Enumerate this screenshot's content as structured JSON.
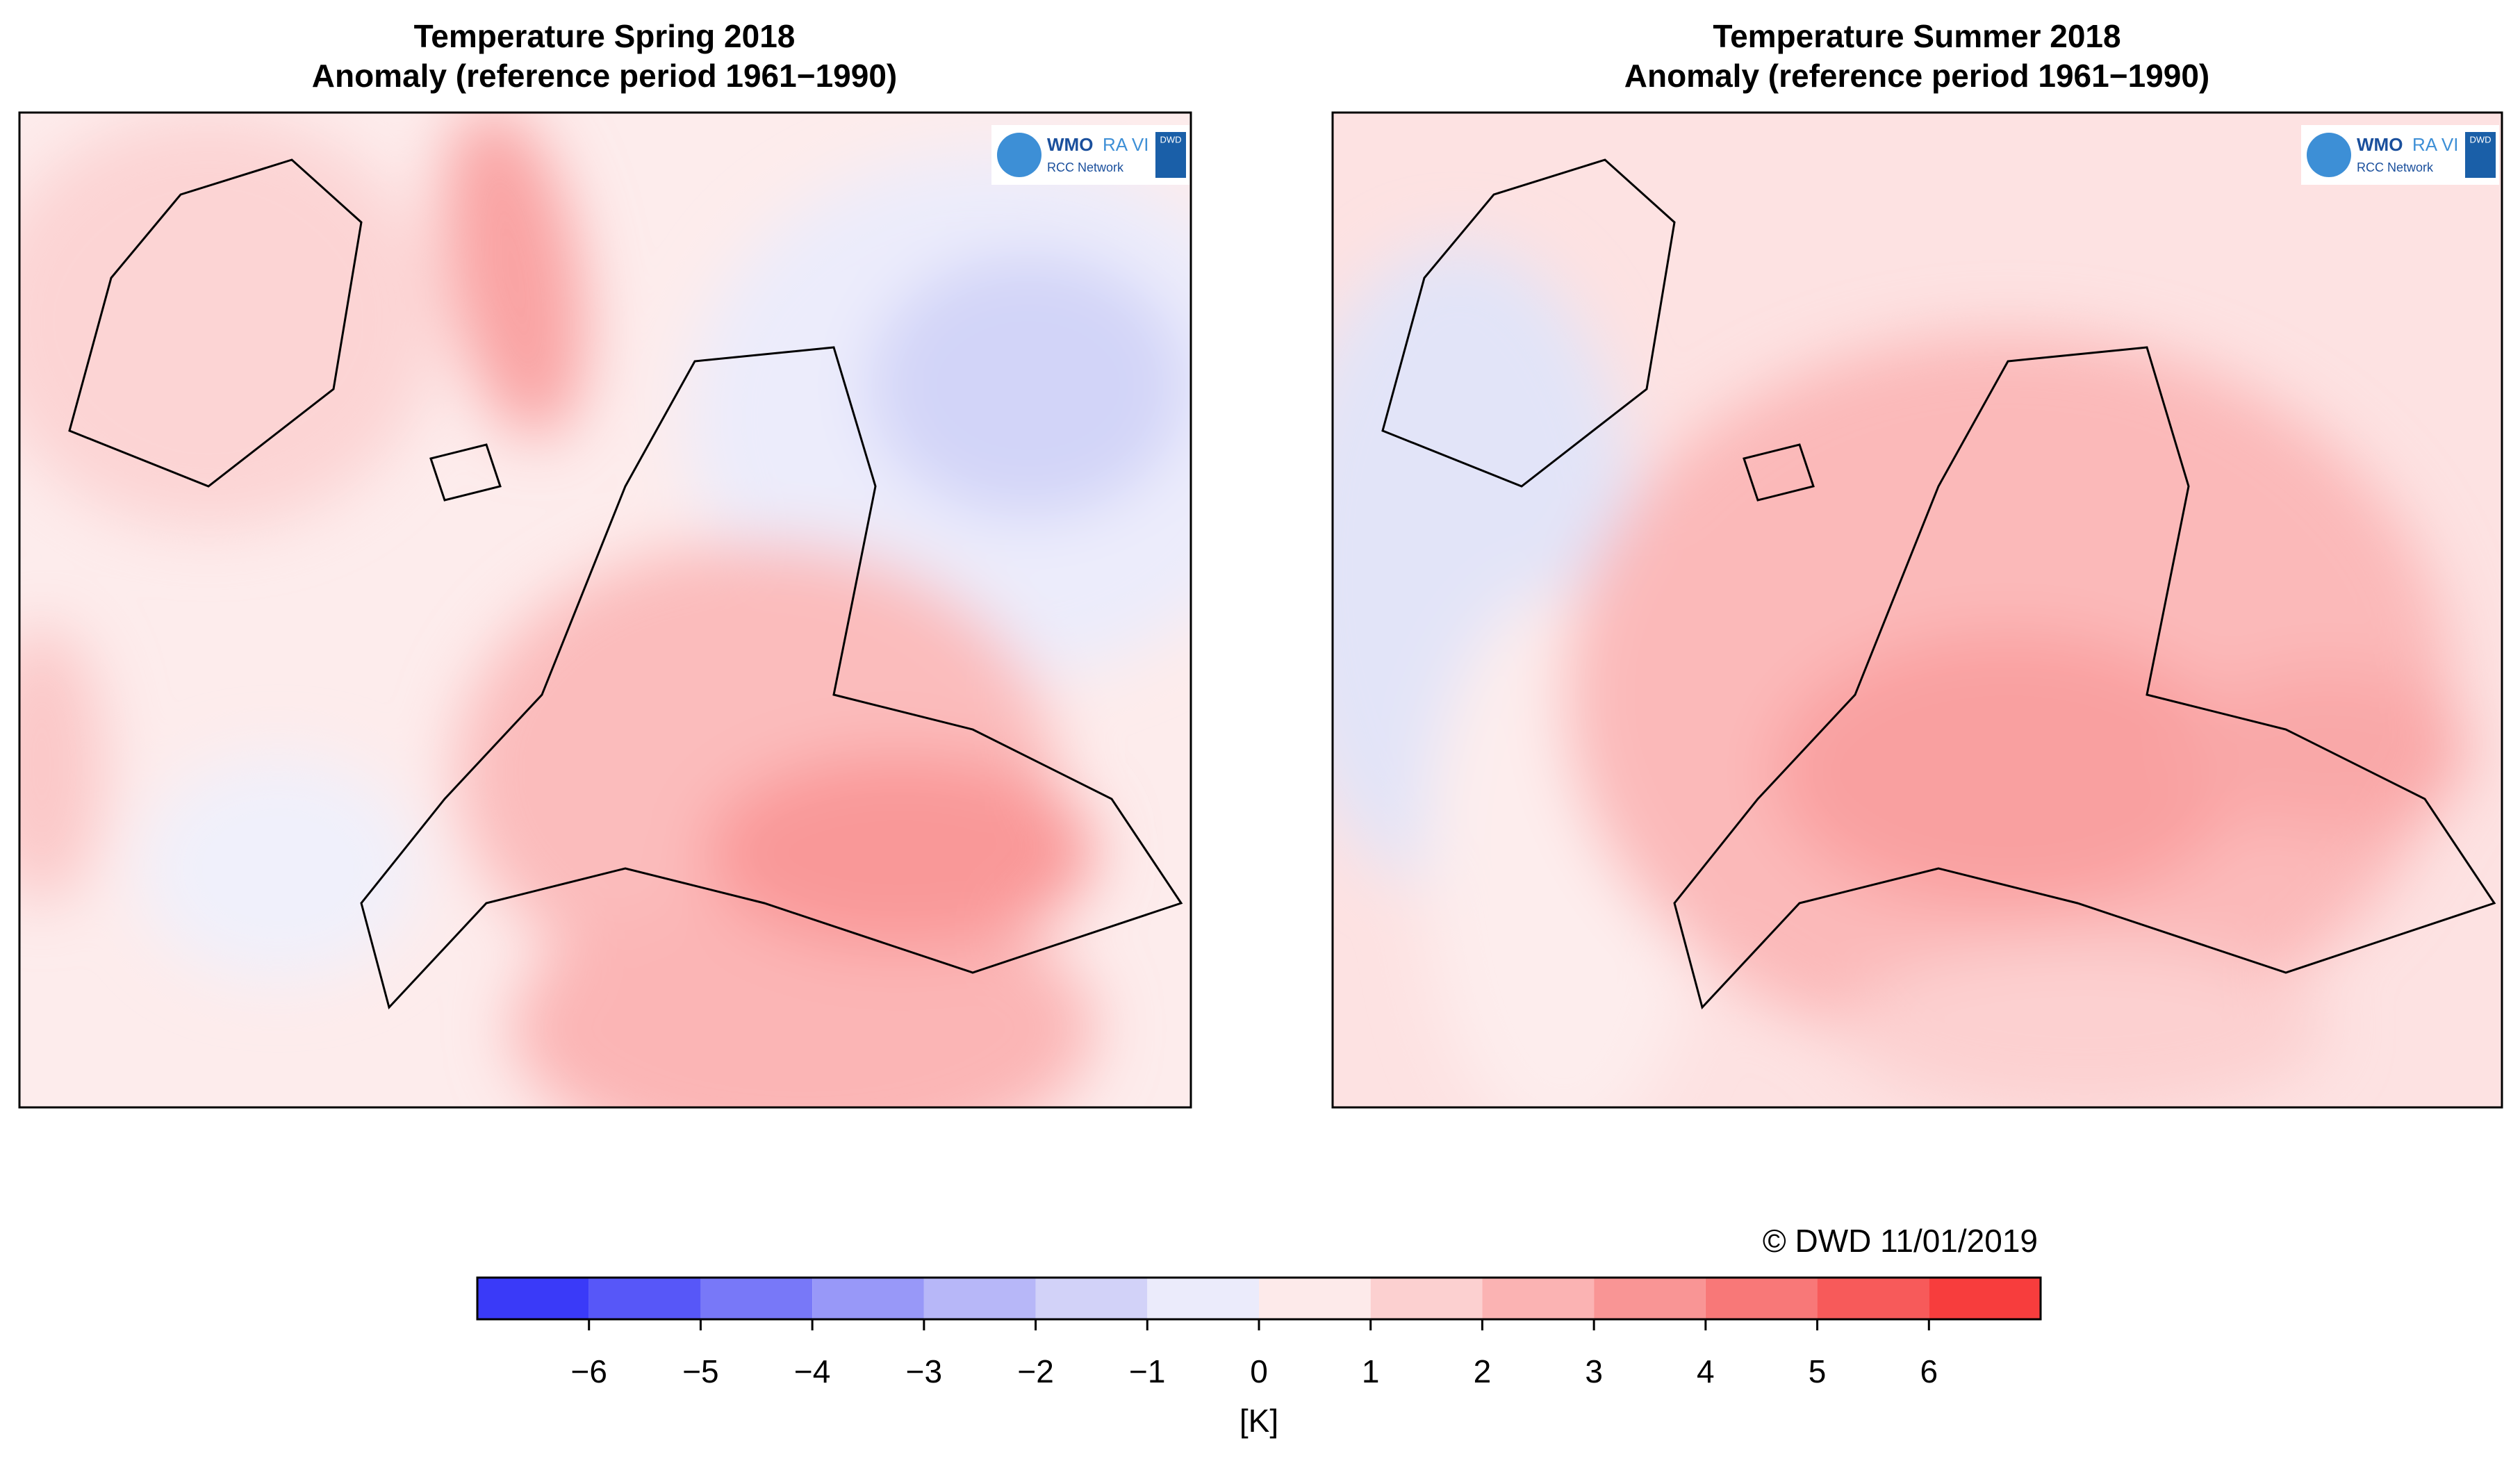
{
  "maps": [
    {
      "title": "Temperature Spring 2018",
      "subtitle": "Anomaly (reference period 1961−1990)"
    },
    {
      "title": "Temperature Summer 2018",
      "subtitle": "Anomaly (reference period 1961−1990)"
    }
  ],
  "logo": {
    "wmo": "WMO",
    "ra": "RA VI",
    "network": "RCC Network",
    "dwd": "DWD"
  },
  "copyright": "© DWD 11/01/2019",
  "colorbar": {
    "range": [
      -7,
      7
    ],
    "ticks": [
      {
        "value": -6,
        "label": "−6"
      },
      {
        "value": -5,
        "label": "−5"
      },
      {
        "value": -4,
        "label": "−4"
      },
      {
        "value": -3,
        "label": "−3"
      },
      {
        "value": -2,
        "label": "−2"
      },
      {
        "value": -1,
        "label": "−1"
      },
      0,
      1,
      2,
      3,
      4,
      5,
      6
    ],
    "colors": [
      "#3a3af8",
      "#5757f8",
      "#7878f8",
      "#9898f8",
      "#b7b7f8",
      "#d2d2f8",
      "#ebebfb",
      "#fdeaea",
      "#fcd0d0",
      "#fbb3b3",
      "#f99595",
      "#f87878",
      "#f75a5a",
      "#f73d3d"
    ],
    "label": "[K]"
  }
}
